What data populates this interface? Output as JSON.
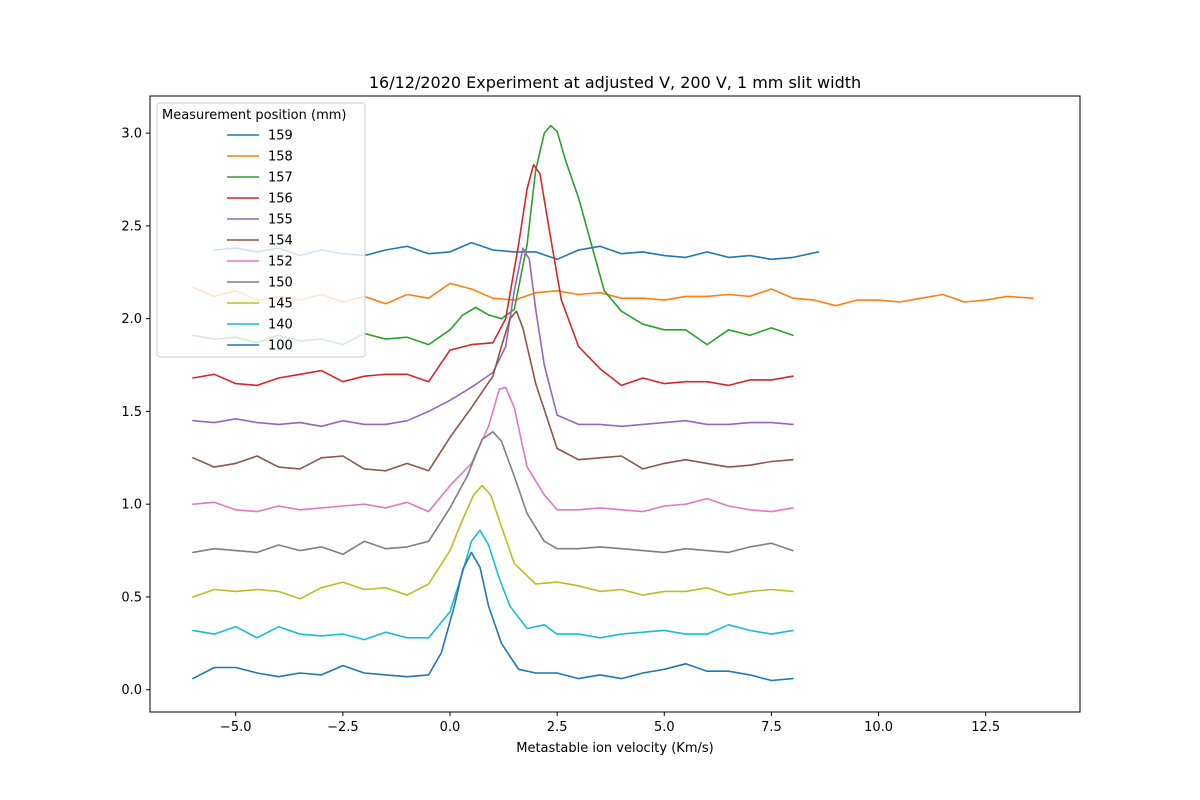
{
  "chart_data": {
    "type": "line",
    "title": "16/12/2020 Experiment at adjusted V, 200 V, 1 mm slit width",
    "xlabel": "Metastable ion velocity (Km/s)",
    "ylabel": "",
    "xlim": [
      -7.0,
      14.7
    ],
    "ylim": [
      -0.12,
      3.2
    ],
    "xticks": [
      -5.0,
      -2.5,
      0.0,
      2.5,
      5.0,
      7.5,
      10.0,
      12.5
    ],
    "xtick_labels": [
      "−5.0",
      "−2.5",
      "0.0",
      "2.5",
      "5.0",
      "7.5",
      "10.0",
      "12.5"
    ],
    "yticks": [
      0.0,
      0.5,
      1.0,
      1.5,
      2.0,
      2.5,
      3.0
    ],
    "ytick_labels": [
      "0.0",
      "0.5",
      "1.0",
      "1.5",
      "2.0",
      "2.5",
      "3.0"
    ],
    "grid": false,
    "legend": {
      "title": "Measurement position (mm)",
      "placement": "top-left"
    },
    "series": [
      {
        "name": "159",
        "color": "#1f77b4",
        "x": [
          -5.5,
          -5.0,
          -4.5,
          -4.0,
          -3.5,
          -3.0,
          -2.5,
          -2.0,
          -1.5,
          -1.0,
          -0.5,
          0.0,
          0.5,
          1.0,
          1.5,
          2.0,
          2.5,
          3.0,
          3.5,
          4.0,
          4.5,
          5.0,
          5.5,
          6.0,
          6.5,
          7.0,
          7.5,
          8.0,
          8.6
        ],
        "y": [
          2.37,
          2.38,
          2.36,
          2.38,
          2.34,
          2.37,
          2.35,
          2.34,
          2.37,
          2.39,
          2.35,
          2.36,
          2.41,
          2.37,
          2.36,
          2.36,
          2.32,
          2.37,
          2.39,
          2.35,
          2.36,
          2.34,
          2.33,
          2.36,
          2.33,
          2.34,
          2.32,
          2.33,
          2.36
        ]
      },
      {
        "name": "158",
        "color": "#ff7f0e",
        "x": [
          -6.0,
          -5.5,
          -5.0,
          -4.5,
          -4.0,
          -3.5,
          -3.0,
          -2.5,
          -2.0,
          -1.5,
          -1.0,
          -0.5,
          0.0,
          0.5,
          1.0,
          1.5,
          2.0,
          2.5,
          3.0,
          3.5,
          4.0,
          4.5,
          5.0,
          5.5,
          6.0,
          6.5,
          7.0,
          7.5,
          8.0,
          8.5,
          9.0,
          9.5,
          10.0,
          10.5,
          11.0,
          11.5,
          12.0,
          12.5,
          13.0,
          13.6
        ],
        "y": [
          2.17,
          2.12,
          2.15,
          2.1,
          2.12,
          2.1,
          2.13,
          2.09,
          2.12,
          2.08,
          2.13,
          2.11,
          2.19,
          2.16,
          2.11,
          2.1,
          2.14,
          2.15,
          2.13,
          2.14,
          2.11,
          2.11,
          2.1,
          2.12,
          2.12,
          2.13,
          2.12,
          2.16,
          2.11,
          2.1,
          2.07,
          2.1,
          2.1,
          2.09,
          2.11,
          2.13,
          2.09,
          2.1,
          2.12,
          2.11
        ]
      },
      {
        "name": "157",
        "color": "#2ca02c",
        "x": [
          -6.0,
          -5.5,
          -5.0,
          -4.5,
          -4.0,
          -3.5,
          -3.0,
          -2.5,
          -2.0,
          -1.5,
          -1.0,
          -0.5,
          0.0,
          0.3,
          0.6,
          0.9,
          1.2,
          1.5,
          1.8,
          2.0,
          2.2,
          2.35,
          2.5,
          2.7,
          3.0,
          3.3,
          3.6,
          4.0,
          4.5,
          5.0,
          5.5,
          6.0,
          6.5,
          7.0,
          7.5,
          8.0
        ],
        "y": [
          1.91,
          1.89,
          1.9,
          1.87,
          1.91,
          1.88,
          1.89,
          1.86,
          1.92,
          1.89,
          1.9,
          1.86,
          1.94,
          2.02,
          2.06,
          2.02,
          2.0,
          2.05,
          2.4,
          2.8,
          3.0,
          3.04,
          3.01,
          2.85,
          2.65,
          2.4,
          2.15,
          2.04,
          1.97,
          1.94,
          1.94,
          1.86,
          1.94,
          1.91,
          1.95,
          1.91
        ]
      },
      {
        "name": "156",
        "color": "#d62728",
        "x": [
          -6.0,
          -5.5,
          -5.0,
          -4.5,
          -4.0,
          -3.5,
          -3.0,
          -2.5,
          -2.0,
          -1.5,
          -1.0,
          -0.5,
          0.0,
          0.5,
          1.0,
          1.3,
          1.6,
          1.8,
          1.95,
          2.1,
          2.3,
          2.6,
          3.0,
          3.5,
          4.0,
          4.5,
          5.0,
          5.5,
          6.0,
          6.5,
          7.0,
          7.5,
          8.0
        ],
        "y": [
          1.68,
          1.7,
          1.65,
          1.64,
          1.68,
          1.7,
          1.72,
          1.66,
          1.69,
          1.7,
          1.7,
          1.66,
          1.83,
          1.86,
          1.87,
          2.0,
          2.4,
          2.7,
          2.83,
          2.78,
          2.5,
          2.1,
          1.85,
          1.73,
          1.64,
          1.68,
          1.65,
          1.66,
          1.66,
          1.64,
          1.67,
          1.67,
          1.69
        ]
      },
      {
        "name": "155",
        "color": "#9467bd",
        "x": [
          -6.0,
          -5.5,
          -5.0,
          -4.5,
          -4.0,
          -3.5,
          -3.0,
          -2.5,
          -2.0,
          -1.5,
          -1.0,
          -0.5,
          0.0,
          0.5,
          1.0,
          1.3,
          1.5,
          1.7,
          1.85,
          2.0,
          2.2,
          2.5,
          3.0,
          3.5,
          4.0,
          4.5,
          5.0,
          5.5,
          6.0,
          6.5,
          7.0,
          7.5,
          8.0
        ],
        "y": [
          1.45,
          1.44,
          1.46,
          1.44,
          1.43,
          1.44,
          1.42,
          1.45,
          1.43,
          1.43,
          1.45,
          1.5,
          1.56,
          1.63,
          1.71,
          1.85,
          2.15,
          2.38,
          2.32,
          2.05,
          1.75,
          1.48,
          1.43,
          1.43,
          1.42,
          1.43,
          1.44,
          1.45,
          1.43,
          1.43,
          1.44,
          1.44,
          1.43
        ]
      },
      {
        "name": "154",
        "color": "#8c564b",
        "x": [
          -6.0,
          -5.5,
          -5.0,
          -4.5,
          -4.0,
          -3.5,
          -3.0,
          -2.5,
          -2.0,
          -1.5,
          -1.0,
          -0.5,
          0.0,
          0.5,
          1.0,
          1.2,
          1.4,
          1.55,
          1.7,
          2.0,
          2.5,
          3.0,
          3.5,
          4.0,
          4.5,
          5.0,
          5.5,
          6.0,
          6.5,
          7.0,
          7.5,
          8.0
        ],
        "y": [
          1.25,
          1.2,
          1.22,
          1.26,
          1.2,
          1.19,
          1.25,
          1.26,
          1.19,
          1.18,
          1.22,
          1.18,
          1.36,
          1.52,
          1.69,
          1.85,
          2.0,
          2.04,
          1.95,
          1.65,
          1.3,
          1.24,
          1.25,
          1.26,
          1.19,
          1.22,
          1.24,
          1.22,
          1.2,
          1.21,
          1.23,
          1.24
        ]
      },
      {
        "name": "152",
        "color": "#e377c2",
        "x": [
          -6.0,
          -5.5,
          -5.0,
          -4.5,
          -4.0,
          -3.5,
          -3.0,
          -2.5,
          -2.0,
          -1.5,
          -1.0,
          -0.5,
          0.0,
          0.5,
          0.9,
          1.15,
          1.3,
          1.5,
          1.8,
          2.2,
          2.5,
          3.0,
          3.5,
          4.0,
          4.5,
          5.0,
          5.5,
          6.0,
          6.5,
          7.0,
          7.5,
          8.0
        ],
        "y": [
          1.0,
          1.01,
          0.97,
          0.96,
          0.99,
          0.97,
          0.98,
          0.99,
          1.0,
          0.98,
          1.01,
          0.96,
          1.1,
          1.22,
          1.42,
          1.62,
          1.63,
          1.52,
          1.2,
          1.05,
          0.97,
          0.97,
          0.98,
          0.97,
          0.96,
          0.99,
          1.0,
          1.03,
          0.99,
          0.97,
          0.96,
          0.98
        ]
      },
      {
        "name": "150",
        "color": "#7f7f7f",
        "x": [
          -6.0,
          -5.5,
          -5.0,
          -4.5,
          -4.0,
          -3.5,
          -3.0,
          -2.5,
          -2.0,
          -1.5,
          -1.0,
          -0.5,
          0.0,
          0.4,
          0.75,
          1.0,
          1.2,
          1.5,
          1.8,
          2.2,
          2.5,
          3.0,
          3.5,
          4.0,
          4.5,
          5.0,
          5.5,
          6.0,
          6.5,
          7.0,
          7.5,
          8.0
        ],
        "y": [
          0.74,
          0.76,
          0.75,
          0.74,
          0.78,
          0.75,
          0.77,
          0.73,
          0.8,
          0.76,
          0.77,
          0.8,
          0.98,
          1.15,
          1.35,
          1.39,
          1.34,
          1.15,
          0.95,
          0.8,
          0.76,
          0.76,
          0.77,
          0.76,
          0.75,
          0.74,
          0.76,
          0.75,
          0.74,
          0.77,
          0.79,
          0.75
        ]
      },
      {
        "name": "145",
        "color": "#bcbd22",
        "x": [
          -6.0,
          -5.5,
          -5.0,
          -4.5,
          -4.0,
          -3.5,
          -3.0,
          -2.5,
          -2.0,
          -1.5,
          -1.0,
          -0.5,
          0.0,
          0.3,
          0.55,
          0.75,
          0.95,
          1.2,
          1.5,
          2.0,
          2.5,
          3.0,
          3.5,
          4.0,
          4.5,
          5.0,
          5.5,
          6.0,
          6.5,
          7.0,
          7.5,
          8.0
        ],
        "y": [
          0.5,
          0.54,
          0.53,
          0.54,
          0.53,
          0.49,
          0.55,
          0.58,
          0.54,
          0.55,
          0.51,
          0.57,
          0.75,
          0.92,
          1.05,
          1.1,
          1.05,
          0.88,
          0.68,
          0.57,
          0.58,
          0.56,
          0.53,
          0.54,
          0.51,
          0.53,
          0.53,
          0.55,
          0.51,
          0.53,
          0.54,
          0.53
        ]
      },
      {
        "name": "140",
        "color": "#17becf",
        "x": [
          -6.0,
          -5.5,
          -5.0,
          -4.5,
          -4.0,
          -3.5,
          -3.0,
          -2.5,
          -2.0,
          -1.5,
          -1.0,
          -0.5,
          0.0,
          0.3,
          0.5,
          0.7,
          0.9,
          1.15,
          1.4,
          1.8,
          2.2,
          2.5,
          3.0,
          3.5,
          4.0,
          4.5,
          5.0,
          5.5,
          6.0,
          6.5,
          7.0,
          7.5,
          8.0
        ],
        "y": [
          0.32,
          0.3,
          0.34,
          0.28,
          0.34,
          0.3,
          0.29,
          0.3,
          0.27,
          0.31,
          0.28,
          0.28,
          0.42,
          0.64,
          0.8,
          0.86,
          0.78,
          0.6,
          0.45,
          0.33,
          0.35,
          0.3,
          0.3,
          0.28,
          0.3,
          0.31,
          0.32,
          0.3,
          0.3,
          0.35,
          0.32,
          0.3,
          0.32
        ]
      },
      {
        "name": "100",
        "color": "#1f77b4",
        "x": [
          -6.0,
          -5.5,
          -5.0,
          -4.5,
          -4.0,
          -3.5,
          -3.0,
          -2.5,
          -2.0,
          -1.5,
          -1.0,
          -0.5,
          -0.2,
          0.1,
          0.3,
          0.5,
          0.7,
          0.9,
          1.2,
          1.6,
          2.0,
          2.5,
          3.0,
          3.5,
          4.0,
          4.5,
          5.0,
          5.5,
          6.0,
          6.5,
          7.0,
          7.5,
          8.0
        ],
        "y": [
          0.06,
          0.12,
          0.12,
          0.09,
          0.07,
          0.09,
          0.08,
          0.13,
          0.09,
          0.08,
          0.07,
          0.08,
          0.2,
          0.45,
          0.65,
          0.74,
          0.66,
          0.45,
          0.25,
          0.11,
          0.09,
          0.09,
          0.06,
          0.08,
          0.06,
          0.09,
          0.11,
          0.14,
          0.1,
          0.1,
          0.08,
          0.05,
          0.06
        ]
      }
    ]
  }
}
